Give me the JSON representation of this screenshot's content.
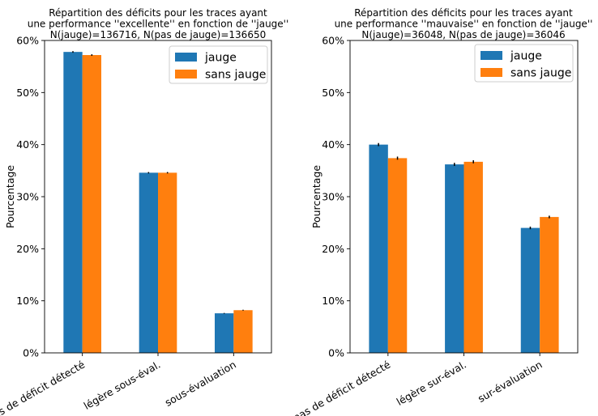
{
  "chart_data": [
    {
      "type": "bar",
      "title": "Répartition des déficits pour les traces ayant\nune performance ''excellente'' en fonction de ''jauge''\nN(jauge)=136716, N(pas de jauge)=136650",
      "xlabel": "",
      "ylabel": "Pourcentage",
      "ylim": [
        0,
        0.6
      ],
      "yticks": [
        0,
        0.1,
        0.2,
        0.3,
        0.4,
        0.5,
        0.6
      ],
      "ytick_labels": [
        "0%",
        "10%",
        "20%",
        "30%",
        "40%",
        "50%",
        "60%"
      ],
      "categories": [
        "pas de déficit détecté",
        "légère sous-éval.",
        "sous-évaluation"
      ],
      "series": [
        {
          "name": "jauge",
          "color": "#1f77b4",
          "values": [
            0.578,
            0.346,
            0.076
          ],
          "err": [
            0.0015,
            0.0013,
            0.0007
          ]
        },
        {
          "name": "sans jauge",
          "color": "#ff7f0e",
          "values": [
            0.572,
            0.346,
            0.082
          ],
          "err": [
            0.0015,
            0.0013,
            0.0008
          ]
        }
      ],
      "legend": "top-right",
      "grid": false
    },
    {
      "type": "bar",
      "title": "Répartition des déficits pour les traces ayant\nune performance ''mauvaise'' en fonction de ''jauge''\nN(jauge)=36048, N(pas de jauge)=36046",
      "xlabel": "",
      "ylabel": "Pourcentage",
      "ylim": [
        0,
        0.6
      ],
      "yticks": [
        0,
        0.1,
        0.2,
        0.3,
        0.4,
        0.5,
        0.6
      ],
      "ytick_labels": [
        "0%",
        "10%",
        "20%",
        "30%",
        "40%",
        "50%",
        "60%"
      ],
      "categories": [
        "pas de déficit détecté",
        "légère sur-éval.",
        "sur-évaluation"
      ],
      "series": [
        {
          "name": "jauge",
          "color": "#1f77b4",
          "values": [
            0.4,
            0.362,
            0.24
          ],
          "err": [
            0.003,
            0.003,
            0.0025
          ]
        },
        {
          "name": "sans jauge",
          "color": "#ff7f0e",
          "values": [
            0.374,
            0.367,
            0.261
          ],
          "err": [
            0.003,
            0.003,
            0.0025
          ]
        }
      ],
      "legend": "top-right",
      "grid": false
    }
  ]
}
